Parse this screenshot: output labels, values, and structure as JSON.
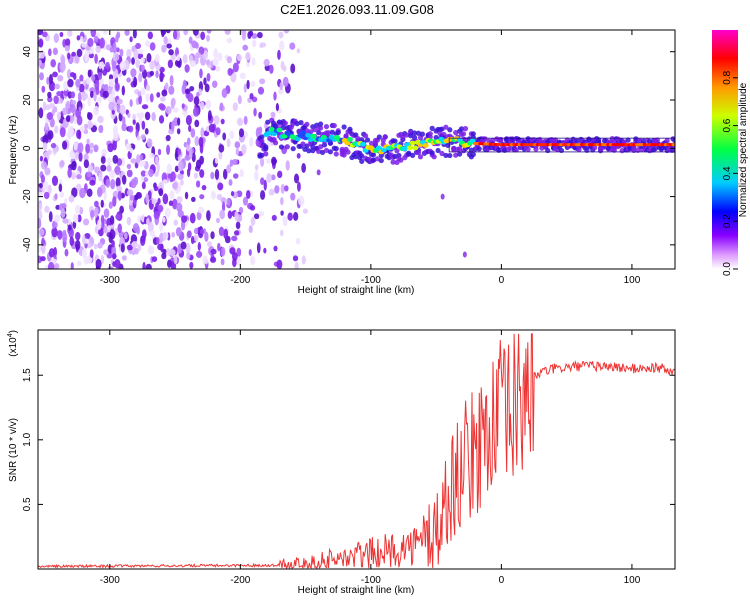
{
  "title": "C2E1.2026.093.11.09.G08",
  "chart_data": [
    {
      "type": "heatmap",
      "name": "spectrogram",
      "xlabel": "Height of straight line (km)",
      "ylabel": "Frequency (Hz)",
      "xlim": [
        -355,
        133
      ],
      "ylim": [
        -50,
        49
      ],
      "xticks": [
        -300,
        -200,
        -100,
        0,
        100
      ],
      "yticks": [
        -40,
        -20,
        0,
        20,
        40
      ],
      "colorbar": {
        "label": "Normalized spectral amplitude",
        "range": [
          0,
          1
        ],
        "ticks": [
          0.0,
          0.2,
          0.4,
          0.6,
          0.8
        ],
        "colors": [
          "#ffffff",
          "#cc77ff",
          "#7700ff",
          "#0000ff",
          "#00ddff",
          "#00ff55",
          "#ddff00",
          "#ff9900",
          "#ff0000",
          "#ff00cc"
        ]
      },
      "noise_region_x": [
        -355,
        -150
      ],
      "ridge": [
        {
          "x": -180,
          "y": 7
        },
        {
          "x": -150,
          "y": 5
        },
        {
          "x": -120,
          "y": 3
        },
        {
          "x": -100,
          "y": -1
        },
        {
          "x": -80,
          "y": 0
        },
        {
          "x": -60,
          "y": 2
        },
        {
          "x": -40,
          "y": 3
        },
        {
          "x": -20,
          "y": 2
        },
        {
          "x": 0,
          "y": 1.5
        },
        {
          "x": 50,
          "y": 1.5
        },
        {
          "x": 133,
          "y": 1.5
        }
      ]
    },
    {
      "type": "line",
      "name": "snr",
      "xlabel": "Height of straight line (km)",
      "ylabel": "SNR (10 * v/v)",
      "y_scale_label": "(x10^4)",
      "y_scale_base": "x10",
      "y_scale_exp": "4",
      "xlim": [
        -355,
        133
      ],
      "ylim": [
        0,
        1.85
      ],
      "xticks": [
        -300,
        -200,
        -100,
        0,
        100
      ],
      "yticks": [
        0.5,
        1.0,
        1.5
      ],
      "ytick_labels": [
        "0.5",
        "1.0",
        "1.5"
      ],
      "series": [
        {
          "name": "SNR",
          "color": "#ee3333",
          "points": [
            [
              -355,
              0.02
            ],
            [
              -250,
              0.025
            ],
            [
              -160,
              0.03
            ],
            [
              -140,
              0.05
            ],
            [
              -120,
              0.08
            ],
            [
              -100,
              0.12
            ],
            [
              -80,
              0.15
            ],
            [
              -60,
              0.2
            ],
            [
              -50,
              0.3
            ],
            [
              -45,
              0.4
            ],
            [
              -40,
              0.6
            ],
            [
              -35,
              0.7
            ],
            [
              -30,
              0.8
            ],
            [
              -20,
              0.9
            ],
            [
              -10,
              1.1
            ],
            [
              0,
              1.2
            ],
            [
              5,
              1.15
            ],
            [
              10,
              1.25
            ],
            [
              15,
              1.3
            ],
            [
              20,
              1.45
            ],
            [
              30,
              1.52
            ],
            [
              40,
              1.55
            ],
            [
              60,
              1.57
            ],
            [
              80,
              1.57
            ],
            [
              100,
              1.55
            ],
            [
              120,
              1.56
            ],
            [
              133,
              1.52
            ]
          ]
        }
      ]
    }
  ]
}
